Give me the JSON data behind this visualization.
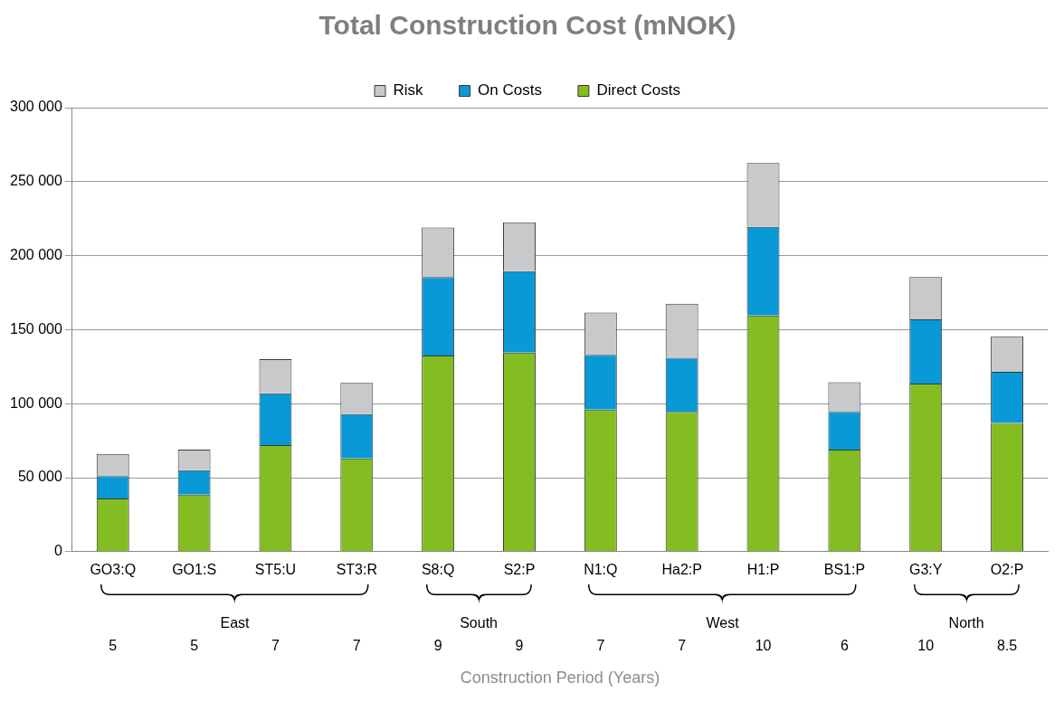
{
  "chart_data": {
    "type": "bar",
    "title": "Total Construction Cost (mNOK)",
    "categories": [
      "GO3:Q",
      "GO1:S",
      "ST5:U",
      "ST3:R",
      "S8:Q",
      "S2:P",
      "N1:Q",
      "Ha2:P",
      "H1:P",
      "BS1:P",
      "G3:Y",
      "O2:P"
    ],
    "series": [
      {
        "name": "Direct Costs",
        "color": "#84bd22",
        "values": [
          36000,
          38500,
          72000,
          63000,
          132500,
          134500,
          96000,
          94500,
          159500,
          69000,
          113500,
          87000
        ]
      },
      {
        "name": "On Costs",
        "color": "#0899d6",
        "values": [
          15000,
          16500,
          35000,
          30000,
          53000,
          55000,
          37000,
          36500,
          60000,
          25500,
          43500,
          34500
        ]
      },
      {
        "name": "Risk",
        "color": "#c8c9cb",
        "values": [
          15000,
          14000,
          23000,
          21000,
          33500,
          33000,
          28500,
          36500,
          43000,
          20000,
          28500,
          24000
        ]
      }
    ],
    "stacked": true,
    "ylim": [
      0,
      300000
    ],
    "yticks": [
      0,
      {
        "value": 50000,
        "label": "50 000"
      },
      {
        "value": 100000,
        "label": "100 000"
      },
      {
        "value": 150000,
        "label": "150 000"
      },
      {
        "value": 200000,
        "label": "200 000"
      },
      {
        "value": 250000,
        "label": "250 000"
      },
      {
        "value": 300000,
        "label": "300 000"
      }
    ],
    "grid": "y",
    "legend": "top",
    "annotations": [
      "5",
      "5",
      "7",
      "7",
      "9",
      "9",
      "7",
      "7",
      "10",
      "6",
      "10",
      "8.5",
      "East",
      "South",
      "West",
      "North",
      "Construction Period (Years)"
    ]
  }
}
